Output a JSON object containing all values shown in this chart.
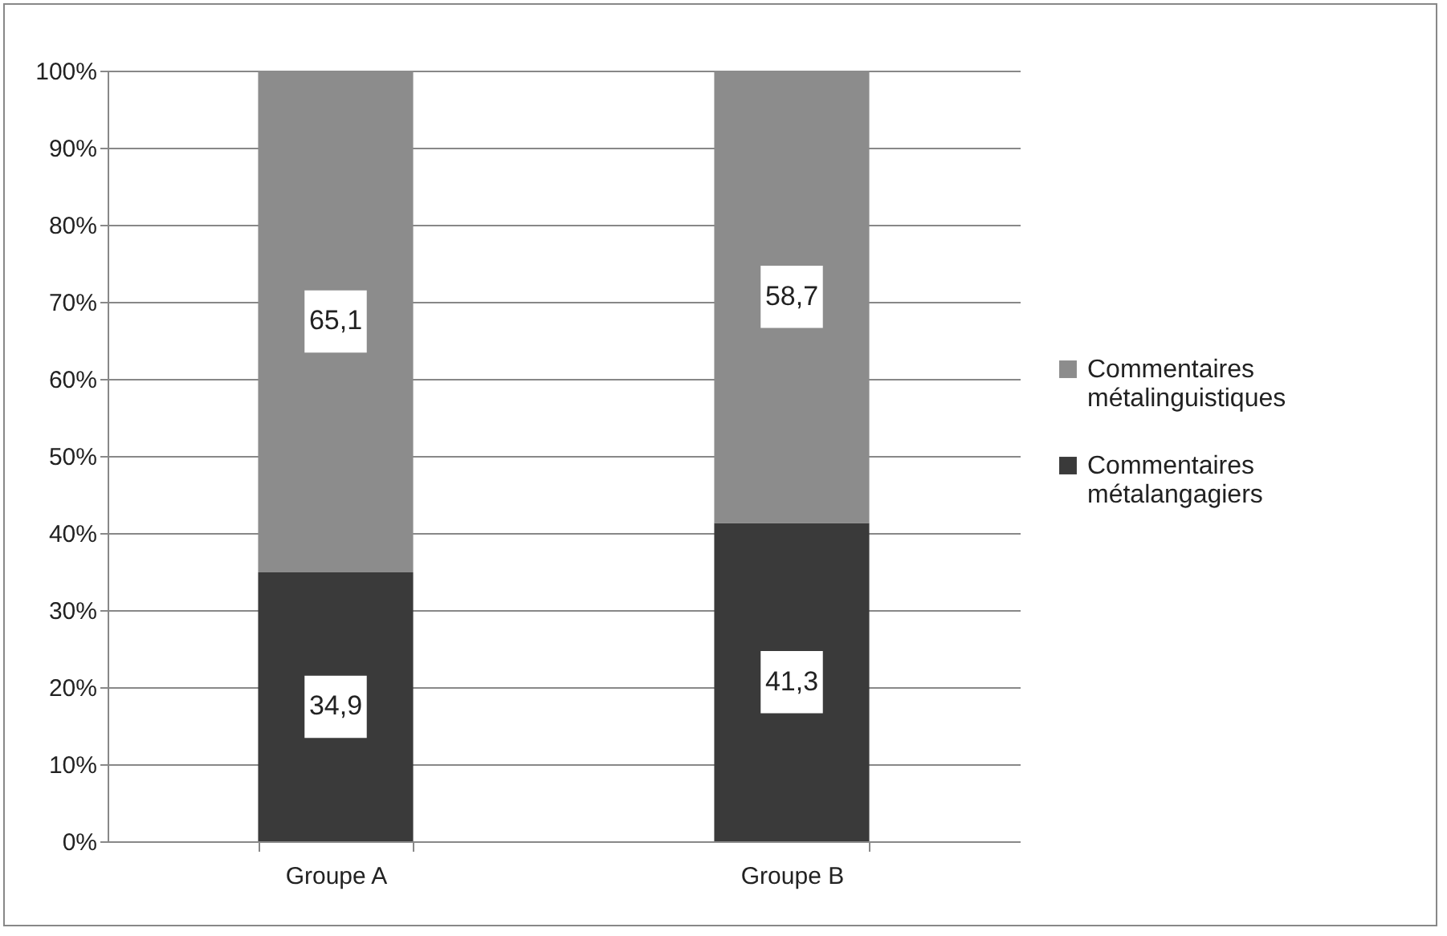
{
  "chart_data": {
    "type": "bar",
    "stacked": true,
    "categories": [
      "Groupe A",
      "Groupe B"
    ],
    "series": [
      {
        "name": "Commentaires métalangagiers",
        "color": "#3a3a3a",
        "values": [
          34.9,
          41.3
        ],
        "value_labels": [
          "34,9",
          "41,3"
        ]
      },
      {
        "name": "Commentaires métalinguistiques",
        "color": "#8c8c8c",
        "values": [
          65.1,
          58.7
        ],
        "value_labels": [
          "65,1",
          "58,7"
        ]
      }
    ],
    "ylim": [
      0,
      100
    ],
    "yticks": [
      {
        "value": 0,
        "label": "0%"
      },
      {
        "value": 10,
        "label": "10%"
      },
      {
        "value": 20,
        "label": "20%"
      },
      {
        "value": 30,
        "label": "30%"
      },
      {
        "value": 40,
        "label": "40%"
      },
      {
        "value": 50,
        "label": "50%"
      },
      {
        "value": 60,
        "label": "60%"
      },
      {
        "value": 70,
        "label": "70%"
      },
      {
        "value": 80,
        "label": "80%"
      },
      {
        "value": 90,
        "label": "90%"
      },
      {
        "value": 100,
        "label": "100%"
      }
    ],
    "grid": "y",
    "legend": "right"
  }
}
